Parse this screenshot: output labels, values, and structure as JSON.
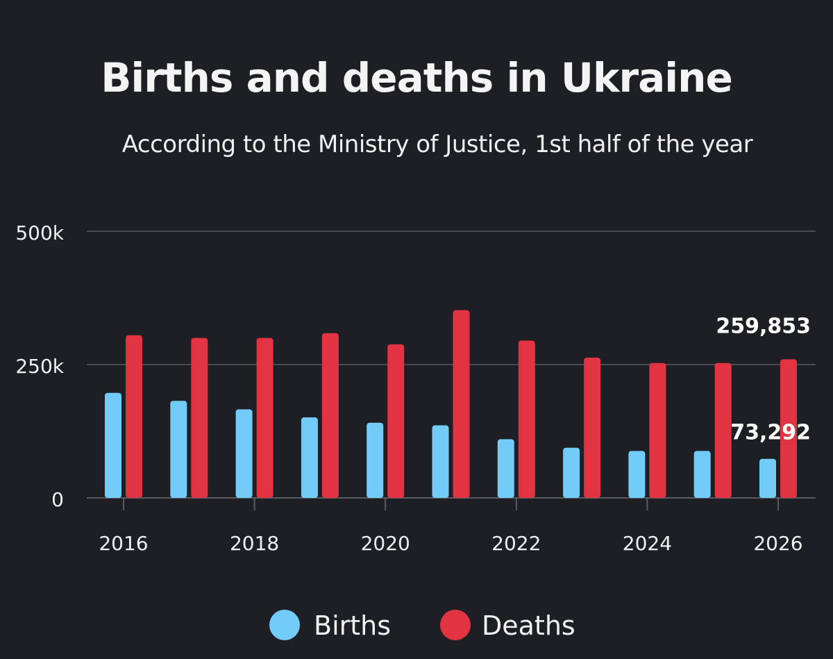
{
  "chart_data": {
    "type": "bar",
    "title": "Births and deaths in Ukraine",
    "subtitle": "According to the Ministry of Justice, 1st half of the year",
    "categories": [
      "2016",
      "2017",
      "2018",
      "2019",
      "2020",
      "2021",
      "2022",
      "2023",
      "2024",
      "2025",
      "2026"
    ],
    "x_tick_labels": [
      "2016",
      "2018",
      "2020",
      "2022",
      "2024",
      "2026"
    ],
    "y_ticks": [
      {
        "value": 0,
        "label": "0"
      },
      {
        "value": 250000,
        "label": "250k"
      },
      {
        "value": 500000,
        "label": "500k"
      }
    ],
    "ylim": [
      0,
      500000
    ],
    "series": [
      {
        "name": "Births",
        "color": "#72ccf7",
        "values": [
          197000,
          182000,
          166000,
          151000,
          141000,
          136000,
          110000,
          94000,
          88000,
          88000,
          73292
        ]
      },
      {
        "name": "Deaths",
        "color": "#e13342",
        "values": [
          305000,
          300000,
          300000,
          309000,
          288000,
          352000,
          295000,
          263000,
          253000,
          253000,
          259853
        ]
      }
    ],
    "data_labels": [
      {
        "series": "Deaths",
        "category": "2026",
        "text": "259,853"
      },
      {
        "series": "Births",
        "category": "2026",
        "text": "73,292"
      }
    ],
    "legend": {
      "placement": "bottom"
    },
    "grid": true,
    "colors": {
      "background": "#1d1f25",
      "grid": "#4a4c52",
      "axis": "#5a5c62"
    }
  }
}
